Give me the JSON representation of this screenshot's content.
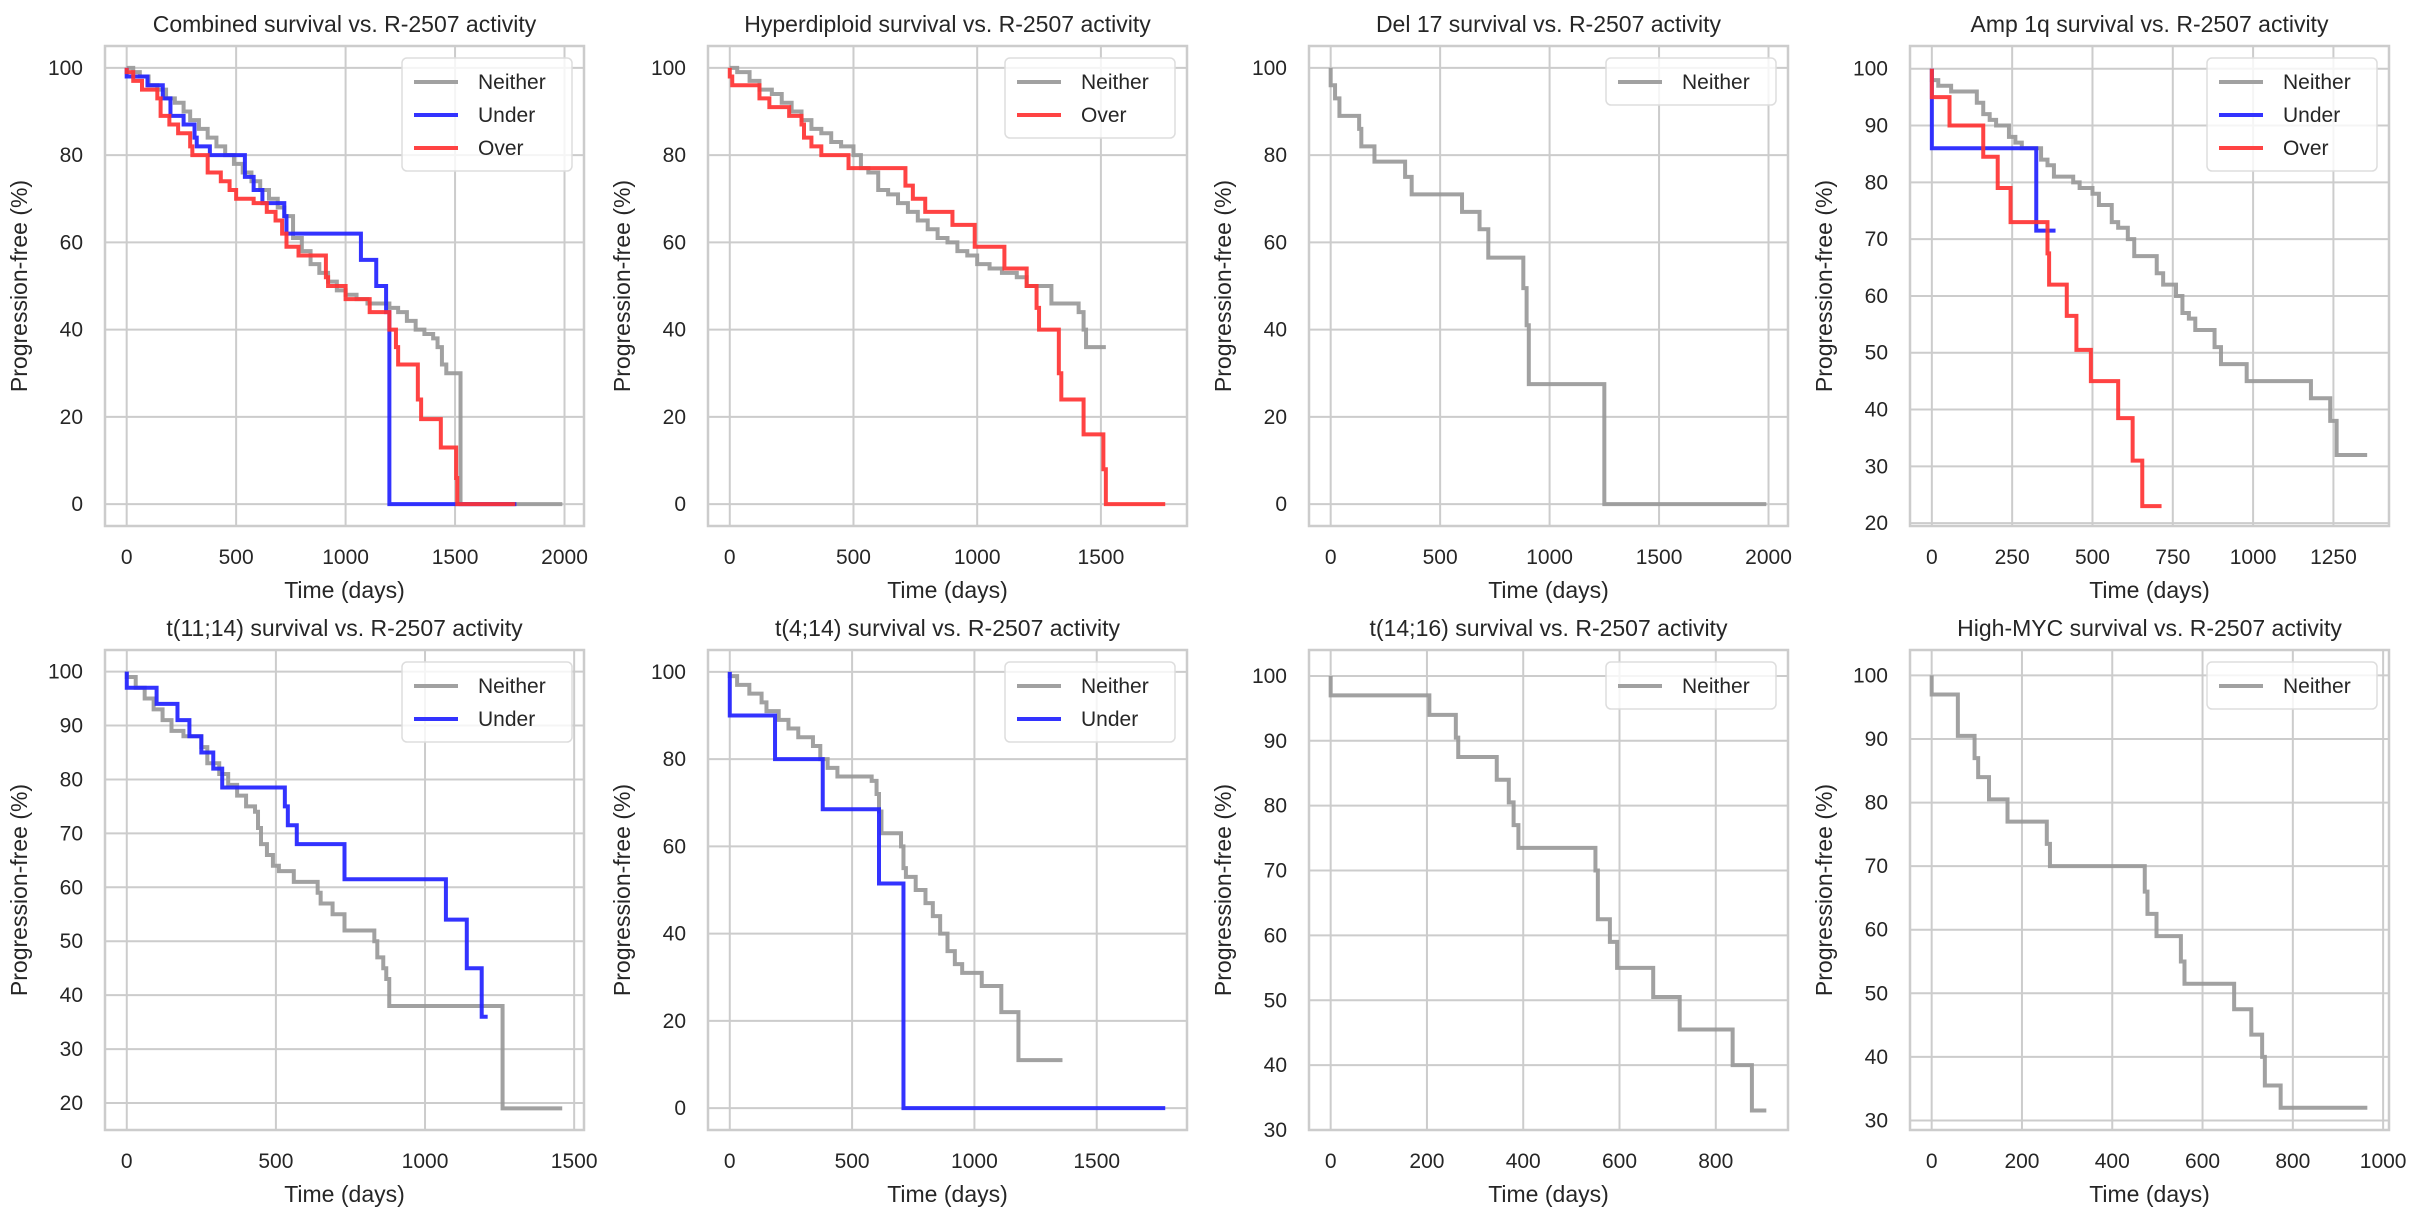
{
  "figure": {
    "background": "#ffffff",
    "grid_color": "#cccccc",
    "series_colors": {
      "Neither": "#999999",
      "Under": "#2222ff",
      "Over": "#ff3333"
    }
  },
  "chart_data": [
    {
      "type": "line",
      "step": true,
      "title": "Combined survival vs. R-2507 activity",
      "xlabel": "Time (days)",
      "ylabel": "Progression-free (%)",
      "xlim": [
        -99,
        2089
      ],
      "ylim": [
        -5,
        105
      ],
      "xticks": [
        0,
        500,
        1000,
        1500,
        2000
      ],
      "yticks": [
        0,
        20,
        40,
        60,
        80,
        100
      ],
      "grid": true,
      "legend": "top-right",
      "series": [
        {
          "name": "Neither",
          "x": [
            0,
            30,
            60,
            100,
            140,
            180,
            220,
            260,
            290,
            330,
            370,
            410,
            450,
            490,
            530,
            570,
            610,
            650,
            690,
            720,
            760,
            800,
            840,
            880,
            920,
            960,
            1000,
            1050,
            1100,
            1150,
            1200,
            1240,
            1280,
            1320,
            1360,
            1400,
            1420,
            1440,
            1460,
            1525,
            1990
          ],
          "y": [
            100,
            99,
            98,
            96,
            95,
            93,
            92,
            90,
            88,
            86,
            84,
            82,
            80,
            78,
            76,
            74,
            72,
            70,
            68,
            66,
            61,
            58,
            55,
            53,
            51,
            49,
            48,
            47,
            46,
            46,
            45,
            44,
            42,
            40,
            39,
            38,
            36,
            32,
            30,
            0,
            0
          ]
        },
        {
          "name": "Under",
          "x": [
            0,
            95,
            165,
            200,
            260,
            310,
            320,
            380,
            540,
            580,
            620,
            720,
            730,
            1070,
            1140,
            1185,
            1200,
            1780
          ],
          "y": [
            98,
            96,
            93,
            89,
            87,
            84,
            82,
            80,
            75,
            72,
            69,
            66,
            62,
            56,
            50,
            44,
            0,
            0
          ]
        },
        {
          "name": "Over",
          "x": [
            0,
            30,
            70,
            140,
            155,
            195,
            235,
            290,
            300,
            370,
            430,
            470,
            500,
            580,
            640,
            680,
            710,
            730,
            785,
            910,
            920,
            1000,
            1110,
            1200,
            1230,
            1240,
            1330,
            1345,
            1435,
            1505,
            1510,
            1775
          ],
          "y": [
            99,
            97,
            95,
            93,
            89,
            87,
            85,
            82,
            80,
            76,
            74,
            72,
            70,
            69,
            67,
            65,
            62,
            59,
            57,
            52,
            50,
            47,
            44,
            40,
            36,
            32,
            24,
            19.5,
            13,
            6,
            0,
            0
          ]
        }
      ]
    },
    {
      "type": "line",
      "step": true,
      "title": "Hyperdiploid survival vs. R-2507 activity",
      "xlabel": "Time (days)",
      "ylabel": "Progression-free (%)",
      "xlim": [
        -88,
        1848
      ],
      "ylim": [
        -5,
        105
      ],
      "xticks": [
        0,
        500,
        1000,
        1500
      ],
      "yticks": [
        0,
        20,
        40,
        60,
        80,
        100
      ],
      "grid": true,
      "legend": "top-right",
      "series": [
        {
          "name": "Neither",
          "x": [
            0,
            30,
            80,
            120,
            170,
            210,
            250,
            290,
            330,
            370,
            410,
            450,
            500,
            530,
            560,
            600,
            640,
            680,
            720,
            760,
            800,
            840,
            880,
            920,
            960,
            1000,
            1050,
            1100,
            1160,
            1200,
            1300,
            1410,
            1430,
            1440,
            1520
          ],
          "y": [
            100,
            99,
            97,
            95,
            94,
            92,
            90,
            88,
            86,
            85,
            83,
            82,
            80,
            77,
            76,
            72,
            71,
            69,
            67,
            65,
            63,
            61,
            60,
            58,
            57,
            55,
            54,
            53,
            52,
            50,
            46,
            44,
            40,
            36,
            36
          ]
        },
        {
          "name": "Over",
          "x": [
            0,
            10,
            120,
            160,
            240,
            290,
            300,
            330,
            370,
            480,
            710,
            740,
            790,
            900,
            990,
            1110,
            1200,
            1240,
            1250,
            1330,
            1340,
            1430,
            1510,
            1520,
            1760
          ],
          "y": [
            98,
            96,
            93,
            91,
            89,
            87,
            84,
            82,
            80,
            77,
            73,
            70,
            67,
            64,
            59,
            54,
            50,
            45,
            40,
            30,
            24,
            16,
            8,
            0,
            0
          ]
        }
      ]
    },
    {
      "type": "line",
      "step": true,
      "title": "Del 17 survival vs. R-2507 activity",
      "xlabel": "Time (days)",
      "ylabel": "Progression-free (%)",
      "xlim": [
        -99,
        2089
      ],
      "ylim": [
        -5,
        105
      ],
      "xticks": [
        0,
        500,
        1000,
        1500,
        2000
      ],
      "yticks": [
        0,
        20,
        40,
        60,
        80,
        100
      ],
      "grid": true,
      "legend": "top-right",
      "series": [
        {
          "name": "Neither",
          "x": [
            0,
            20,
            40,
            130,
            140,
            200,
            340,
            370,
            600,
            680,
            720,
            880,
            895,
            905,
            1250,
            1990
          ],
          "y": [
            96,
            93,
            89,
            86,
            82,
            78.5,
            75,
            71,
            67,
            63,
            56.5,
            49.5,
            41,
            27.5,
            0,
            0
          ]
        }
      ]
    },
    {
      "type": "line",
      "step": true,
      "title": "Amp 1q survival vs. R-2507 activity",
      "xlabel": "Time (days)",
      "ylabel": "Progression-free (%)",
      "xlim": [
        -68,
        1423
      ],
      "ylim": [
        19.5,
        104
      ],
      "xticks": [
        0,
        250,
        500,
        750,
        1000,
        1250
      ],
      "yticks": [
        20,
        30,
        40,
        50,
        60,
        70,
        80,
        90,
        100
      ],
      "grid": true,
      "legend": "top-right",
      "series": [
        {
          "name": "Neither",
          "x": [
            0,
            20,
            60,
            140,
            160,
            180,
            200,
            240,
            260,
            280,
            340,
            360,
            380,
            440,
            460,
            500,
            520,
            560,
            580,
            610,
            630,
            700,
            720,
            760,
            780,
            800,
            820,
            880,
            900,
            980,
            1180,
            1240,
            1260,
            1355
          ],
          "y": [
            98,
            97,
            96,
            94,
            92,
            91,
            90,
            88,
            87,
            86,
            84,
            83,
            81,
            80,
            79,
            78,
            76,
            73,
            72,
            70,
            67,
            64,
            62,
            60,
            57,
            56,
            54,
            51,
            48,
            45,
            42,
            38,
            32,
            32
          ]
        },
        {
          "name": "Under",
          "x": [
            0,
            325,
            385
          ],
          "y": [
            86,
            71.5,
            71.5
          ]
        },
        {
          "name": "Over",
          "x": [
            0,
            55,
            160,
            205,
            245,
            360,
            365,
            420,
            450,
            495,
            580,
            625,
            655,
            715
          ],
          "y": [
            95,
            90,
            84.5,
            79,
            73,
            67.5,
            62,
            56.5,
            50.5,
            45,
            38.5,
            31,
            23,
            23
          ]
        }
      ]
    },
    {
      "type": "line",
      "step": true,
      "title": "t(11;14) survival vs. R-2507 activity",
      "xlabel": "Time (days)",
      "ylabel": "Progression-free (%)",
      "xlim": [
        -73,
        1533
      ],
      "ylim": [
        15,
        104
      ],
      "xticks": [
        0,
        500,
        1000,
        1500
      ],
      "yticks": [
        20,
        30,
        40,
        50,
        60,
        70,
        80,
        90,
        100
      ],
      "grid": true,
      "legend": "top-right",
      "series": [
        {
          "name": "Neither",
          "x": [
            0,
            30,
            60,
            90,
            120,
            150,
            190,
            250,
            270,
            310,
            340,
            370,
            400,
            430,
            440,
            450,
            470,
            490,
            510,
            560,
            640,
            650,
            690,
            730,
            830,
            840,
            860,
            870,
            880,
            1250,
            1260,
            1460
          ],
          "y": [
            99,
            97,
            95,
            93,
            91,
            89,
            88,
            86,
            83,
            81,
            79,
            77,
            75,
            74,
            71,
            68,
            66,
            64,
            63,
            61,
            59,
            57,
            55,
            52,
            50,
            47,
            45,
            43,
            38,
            38,
            19,
            19
          ]
        },
        {
          "name": "Under",
          "x": [
            0,
            100,
            170,
            210,
            250,
            290,
            320,
            530,
            540,
            570,
            730,
            1070,
            1140,
            1190,
            1210
          ],
          "y": [
            97,
            94,
            91,
            88,
            85,
            82,
            78.5,
            75,
            71.5,
            68,
            61.5,
            54,
            45,
            36,
            36
          ]
        }
      ]
    },
    {
      "type": "line",
      "step": true,
      "title": "t(4;14) survival vs. R-2507 activity",
      "xlabel": "Time (days)",
      "ylabel": "Progression-free (%)",
      "xlim": [
        -89,
        1869
      ],
      "ylim": [
        -5,
        105
      ],
      "xticks": [
        0,
        500,
        1000,
        1500
      ],
      "yticks": [
        0,
        20,
        40,
        60,
        80,
        100
      ],
      "grid": true,
      "legend": "top-right",
      "series": [
        {
          "name": "Neither",
          "x": [
            0,
            30,
            80,
            130,
            150,
            200,
            240,
            280,
            340,
            370,
            400,
            440,
            580,
            600,
            610,
            620,
            630,
            700,
            710,
            720,
            760,
            800,
            830,
            860,
            890,
            920,
            950,
            1030,
            1110,
            1180,
            1360
          ],
          "y": [
            99,
            97,
            95,
            93,
            91,
            89,
            87,
            85,
            83,
            80,
            78,
            76,
            75,
            72,
            68,
            63,
            63,
            60,
            55,
            53,
            50,
            47,
            44,
            40,
            36,
            33,
            31,
            28,
            22,
            11,
            11
          ]
        },
        {
          "name": "Under",
          "x": [
            0,
            185,
            380,
            610,
            710,
            1780
          ],
          "y": [
            90,
            80,
            68.5,
            51.5,
            0,
            0
          ]
        }
      ]
    },
    {
      "type": "line",
      "step": true,
      "title": "t(14;16) survival vs. R-2507 activity",
      "xlabel": "Time (days)",
      "ylabel": "Progression-free (%)",
      "xlim": [
        -45,
        950
      ],
      "ylim": [
        30,
        104
      ],
      "xticks": [
        0,
        200,
        400,
        600,
        800
      ],
      "yticks": [
        30,
        40,
        50,
        60,
        70,
        80,
        90,
        100
      ],
      "grid": true,
      "legend": "top-right",
      "series": [
        {
          "name": "Neither",
          "x": [
            0,
            205,
            260,
            265,
            345,
            370,
            380,
            390,
            550,
            555,
            580,
            595,
            670,
            725,
            835,
            875,
            905
          ],
          "y": [
            97,
            94,
            90.5,
            87.5,
            84,
            80.5,
            77,
            73.5,
            70,
            62.5,
            59,
            55,
            50.5,
            45.5,
            40,
            33,
            33
          ]
        }
      ]
    },
    {
      "type": "line",
      "step": true,
      "title": "High-MYC survival vs. R-2507 activity",
      "xlabel": "Time (days)",
      "ylabel": "Progression-free (%)",
      "xlim": [
        -48,
        1013
      ],
      "ylim": [
        28.5,
        104
      ],
      "xticks": [
        0,
        200,
        400,
        600,
        800,
        1000
      ],
      "yticks": [
        30,
        40,
        50,
        60,
        70,
        80,
        90,
        100
      ],
      "grid": true,
      "legend": "top-right",
      "series": [
        {
          "name": "Neither",
          "x": [
            0,
            58,
            95,
            103,
            127,
            168,
            255,
            262,
            472,
            478,
            498,
            552,
            560,
            670,
            708,
            732,
            738,
            773,
            965
          ],
          "y": [
            97,
            90.5,
            87,
            84,
            80.5,
            77,
            73.5,
            70,
            66,
            62.5,
            59,
            55,
            51.5,
            47.5,
            43.5,
            40,
            35.5,
            32,
            32
          ]
        }
      ]
    }
  ]
}
